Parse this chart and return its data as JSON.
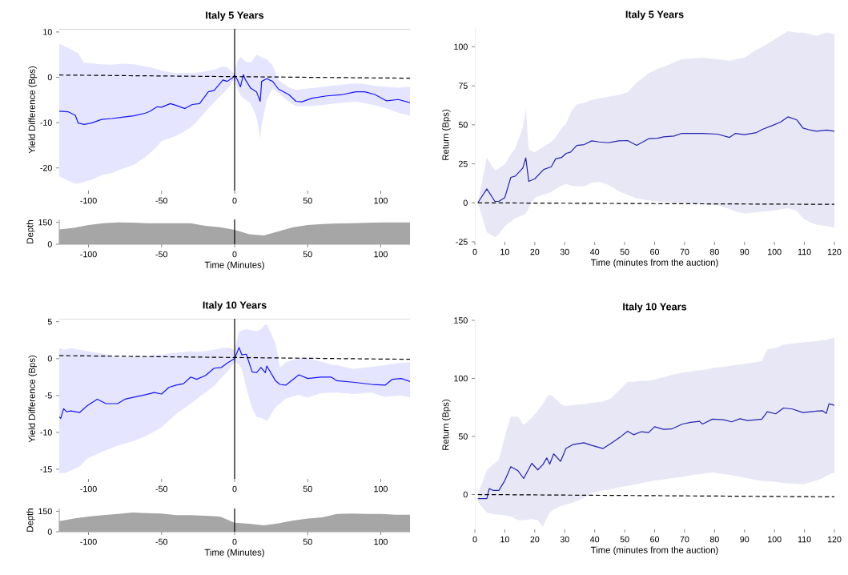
{
  "chart_data": [
    {
      "type": "line",
      "title": "Italy 5 Years",
      "ylabel": "Yield Difference (Bps)",
      "xlim": [
        -120,
        120
      ],
      "ylim": [
        -25,
        10.7
      ],
      "xticks": [
        -100,
        -50,
        0,
        50,
        100
      ],
      "yticks": [
        -20,
        -10,
        0,
        10
      ],
      "ref_lines": [
        {
          "axis": "x",
          "value": 0
        }
      ],
      "series": [
        {
          "color": "#1414ff",
          "x": [
            -120,
            -114,
            -109,
            -107,
            -103,
            -98,
            -91,
            -84,
            -77,
            -69,
            -61,
            -58,
            -53,
            -50,
            -44,
            -40,
            -34,
            -29,
            -24,
            -18,
            -14,
            -8,
            -5,
            -1,
            0,
            2,
            4,
            6,
            7.5,
            11,
            15,
            17.5,
            18.5,
            22,
            26,
            30,
            37,
            42,
            46,
            53,
            63,
            74,
            83,
            89,
            96,
            104,
            112,
            120
          ],
          "values": [
            -7.5,
            -7.6,
            -8.4,
            -10.1,
            -10.4,
            -10.1,
            -9.3,
            -9.1,
            -8.8,
            -8.5,
            -7.9,
            -7.5,
            -6.5,
            -6.6,
            -5.8,
            -6.2,
            -6.9,
            -6.0,
            -5.8,
            -3.2,
            -2.9,
            -0.6,
            -0.9,
            0,
            0.5,
            -0.6,
            -2.1,
            0.6,
            -0.6,
            -2.4,
            -3.2,
            -5.3,
            -0.9,
            -0.3,
            -0.9,
            -2.6,
            -3.8,
            -5.3,
            -5.4,
            -4.6,
            -4.1,
            -3.8,
            -3.2,
            -3.2,
            -3.8,
            -5.2,
            -4.9,
            -5.6
          ],
          "upper": [
            7.4,
            6.5,
            5.6,
            5.3,
            3.2,
            3.1,
            2.9,
            2.8,
            3.0,
            2.9,
            2.4,
            2.2,
            1.8,
            1.5,
            1.1,
            0.9,
            1.0,
            0.9,
            1.1,
            1.4,
            1.7,
            2.4,
            2.2,
            1.0,
            1.2,
            3.5,
            4.5,
            4.0,
            3.5,
            3.2,
            5.0,
            4.6,
            4.4,
            4.0,
            2.6,
            -0.6,
            -2.2,
            -2.8,
            -2.6,
            -2.4,
            -2.0,
            -1.6,
            -1.3,
            -1.5,
            -1.9,
            -2.1,
            -2.3,
            -2.1
          ],
          "lower": [
            -21.8,
            -22.8,
            -23.5,
            -23.4,
            -23.1,
            -22.6,
            -21.6,
            -21.1,
            -20.2,
            -19.3,
            -17.6,
            -16.8,
            -15.2,
            -14.1,
            -13.4,
            -12.9,
            -11.9,
            -10.8,
            -9.1,
            -6.9,
            -5.5,
            -3.5,
            -2.6,
            -0.8,
            -0.6,
            -2.5,
            -4.0,
            -4.6,
            -4.9,
            -5.8,
            -8.8,
            -13.5,
            -10.5,
            -5.0,
            -2.5,
            -3.5,
            -5.4,
            -6.3,
            -6.4,
            -6.3,
            -6.0,
            -5.6,
            -5.4,
            -5.7,
            -6.2,
            -6.9,
            -7.8,
            -8.5
          ]
        },
        {
          "color": "#000000",
          "line_style": "dashed",
          "x": [
            -120,
            120
          ],
          "values": [
            0.5,
            -0.2
          ]
        }
      ]
    },
    {
      "type": "area",
      "xlabel": "Time (Minutes)",
      "ylabel": "Depth",
      "xlim": [
        -120,
        120
      ],
      "ylim": [
        0,
        170
      ],
      "xticks": [
        -100,
        -50,
        0,
        50,
        100
      ],
      "yticks": [
        0,
        150
      ],
      "ref_lines": [
        {
          "axis": "x",
          "value": 0
        }
      ],
      "series": [
        {
          "color": "#a6a6a6",
          "x": [
            -120,
            -110,
            -100,
            -90,
            -80,
            -70,
            -60,
            -50,
            -40,
            -30,
            -20,
            -10,
            0,
            10,
            20,
            30,
            40,
            50,
            60,
            70,
            80,
            90,
            100,
            110,
            120
          ],
          "values": [
            101,
            113,
            131,
            144,
            150,
            148,
            144,
            144,
            144,
            144,
            126,
            116,
            98,
            69,
            60,
            88,
            116,
            131,
            139,
            142,
            144,
            146,
            150,
            150,
            150
          ]
        }
      ]
    },
    {
      "type": "line",
      "title": "Italy 5 Years",
      "xlabel": "Time (minutes from the auction)",
      "ylabel": "Return (Bps)",
      "xlim": [
        0,
        120
      ],
      "ylim": [
        -25,
        112
      ],
      "xticks": [
        0,
        10,
        20,
        30,
        40,
        50,
        60,
        70,
        80,
        90,
        100,
        110,
        120
      ],
      "yticks": [
        -25,
        0,
        25,
        50,
        75,
        100
      ],
      "series": [
        {
          "color": "#2323b0",
          "x": [
            1,
            4,
            6.7,
            8,
            10,
            12,
            13.5,
            16,
            17,
            18,
            20,
            23,
            25.5,
            27,
            29,
            30.5,
            32,
            34,
            36.5,
            39,
            41.5,
            44.5,
            48,
            51,
            54,
            58,
            61,
            63,
            66.5,
            69,
            76,
            81,
            85,
            87,
            90,
            94,
            96,
            99.5,
            102,
            104.5,
            107.5,
            109.5,
            112,
            114,
            117.5,
            120
          ],
          "values": [
            0,
            8.9,
            0.9,
            0.9,
            3.4,
            16.3,
            17.1,
            22.3,
            28.8,
            13.7,
            15.4,
            21.4,
            23.1,
            28.3,
            29.1,
            31.7,
            32.5,
            36.8,
            37.3,
            39.7,
            39.0,
            38.5,
            39.7,
            39.9,
            36.8,
            41.1,
            41.4,
            42.3,
            42.8,
            44.5,
            44.5,
            44.0,
            41.9,
            44.5,
            43.7,
            45.0,
            47.1,
            49.7,
            51.7,
            55.1,
            53.1,
            47.9,
            46.6,
            45.9,
            46.6,
            45.9
          ],
          "upper": [
            0,
            29,
            20.5,
            22,
            24.8,
            31,
            35,
            48,
            60,
            34,
            32.5,
            36,
            39,
            42,
            48,
            51,
            58,
            63,
            64,
            66,
            67,
            68,
            69,
            71,
            77,
            83,
            86,
            87,
            90,
            92,
            93,
            92,
            91,
            92,
            93,
            98,
            100,
            104,
            107,
            110,
            109,
            109,
            108,
            107,
            109,
            108
          ],
          "lower": [
            0,
            -18.8,
            -22,
            -20,
            -15,
            -12,
            -10,
            -8,
            -6.8,
            -3.4,
            3.4,
            5.4,
            6.8,
            8.9,
            11,
            12,
            11,
            10.6,
            10.5,
            12.8,
            13.5,
            11.5,
            7.5,
            5,
            3,
            1.6,
            0.9,
            0.6,
            0.2,
            0,
            -1,
            -1.7,
            -4,
            -5.5,
            -6.8,
            -6,
            -5.6,
            -5,
            -4.2,
            -3.4,
            -5,
            -10,
            -12.5,
            -14,
            -15,
            -16
          ]
        },
        {
          "color": "#000000",
          "line_style": "dashed",
          "x": [
            1,
            120
          ],
          "values": [
            0,
            -1
          ]
        }
      ]
    },
    {
      "type": "line",
      "title": "Italy 10 Years",
      "ylabel": "Yield Difference (Bps)",
      "xlim": [
        -120,
        120
      ],
      "ylim": [
        -16.3,
        5.4
      ],
      "xticks": [
        -100,
        -50,
        0,
        50,
        100
      ],
      "yticks": [
        -15,
        -10,
        -5,
        0,
        5
      ],
      "ref_lines": [
        {
          "axis": "x",
          "value": 0
        }
      ],
      "series": [
        {
          "color": "#1414ff",
          "x": [
            -120,
            -119,
            -117,
            -115,
            -112,
            -106,
            -101,
            -94,
            -88,
            -80,
            -75,
            -68,
            -61,
            -55,
            -50,
            -45,
            -40,
            -35,
            -30,
            -26,
            -20,
            -14,
            -9,
            -5,
            0,
            3,
            5,
            8,
            12,
            15,
            18,
            21,
            22,
            28,
            31,
            35,
            44,
            50,
            59,
            66,
            70,
            81,
            94,
            103,
            108,
            114,
            120
          ],
          "values": [
            -7.9,
            -8.1,
            -6.8,
            -7.2,
            -7.1,
            -7.3,
            -6.4,
            -5.5,
            -6.1,
            -6.1,
            -5.5,
            -5.2,
            -4.9,
            -4.6,
            -4.8,
            -3.9,
            -3.6,
            -3.4,
            -2.5,
            -2.8,
            -2.3,
            -1.3,
            -1.2,
            -0.6,
            0,
            1.5,
            0.5,
            0.6,
            -1.8,
            -1.9,
            -1.2,
            -1.9,
            -1.0,
            -3.0,
            -3.5,
            -3.6,
            -2.2,
            -2.7,
            -2.5,
            -2.5,
            -3.0,
            -3.2,
            -3.5,
            -3.6,
            -2.8,
            -2.7,
            -3.1
          ],
          "upper": [
            1.3,
            1.4,
            1.2,
            1.3,
            1.4,
            1.2,
            1.0,
            0.8,
            0.6,
            0.1,
            0.2,
            0.3,
            0.3,
            0.5,
            0.5,
            0.7,
            0.8,
            0.9,
            1.0,
            0.9,
            1.0,
            1.2,
            1.4,
            1.5,
            1.2,
            3.6,
            3.8,
            4.0,
            3.8,
            3.7,
            4.0,
            4.6,
            4.7,
            2.0,
            -1.2,
            -0.5,
            0.1,
            0.1,
            -0.4,
            -0.8,
            -0.9,
            -1.4,
            -1.1,
            -0.9,
            -0.7,
            -0.6,
            -0.5
          ],
          "lower": [
            -15.6,
            -15.5,
            -15.5,
            -15.4,
            -15.2,
            -14.6,
            -13.6,
            -12.9,
            -12.4,
            -11.8,
            -11.5,
            -11.1,
            -10.5,
            -9.9,
            -9.3,
            -8.4,
            -7.5,
            -6.8,
            -6.1,
            -5.5,
            -4.6,
            -3.7,
            -2.6,
            -1.8,
            -0.5,
            -0.8,
            -1.4,
            -4.0,
            -6.8,
            -7.9,
            -8.0,
            -8.3,
            -8.5,
            -6.6,
            -6.1,
            -5.4,
            -4.9,
            -5.3,
            -4.7,
            -4.6,
            -4.6,
            -4.8,
            -4.6,
            -5.2,
            -5.1,
            -5.0,
            -5.3
          ]
        },
        {
          "color": "#000000",
          "line_style": "dashed",
          "x": [
            -120,
            120
          ],
          "values": [
            0.4,
            -0.1
          ]
        }
      ]
    },
    {
      "type": "area",
      "xlabel": "Time (Minutes)",
      "ylabel": "Depth",
      "xlim": [
        -120,
        120
      ],
      "ylim": [
        0,
        170
      ],
      "xticks": [
        -100,
        -50,
        0,
        50,
        100
      ],
      "yticks": [
        0,
        150
      ],
      "ref_lines": [
        {
          "axis": "x",
          "value": 0
        }
      ],
      "series": [
        {
          "color": "#a6a6a6",
          "x": [
            -120,
            -110,
            -100,
            -90,
            -80,
            -70,
            -60,
            -50,
            -40,
            -30,
            -20,
            -10,
            0,
            10,
            20,
            30,
            40,
            50,
            60,
            70,
            80,
            90,
            100,
            110,
            120
          ],
          "values": [
            78,
            97,
            111,
            121,
            131,
            140,
            136,
            134,
            121,
            121,
            117,
            111,
            66,
            58,
            47,
            62,
            82,
            97,
            105,
            131,
            134,
            131,
            131,
            125,
            125
          ]
        }
      ]
    },
    {
      "type": "line",
      "title": "Italy 10 Years",
      "xlabel": "Time (minutes from the auction)",
      "ylabel": "Return (Bps)",
      "xlim": [
        0,
        120
      ],
      "ylim": [
        -30,
        150
      ],
      "xticks": [
        0,
        10,
        20,
        30,
        40,
        50,
        60,
        70,
        80,
        90,
        100,
        110,
        120
      ],
      "yticks": [
        0,
        50,
        100,
        150
      ],
      "series": [
        {
          "color": "#2323b0",
          "x": [
            1,
            4,
            4.8,
            6.2,
            8,
            10,
            12,
            14.4,
            16.3,
            19,
            21,
            22.7,
            24,
            25,
            26.3,
            28.6,
            30.4,
            32.7,
            36.4,
            39,
            42.8,
            45.5,
            48.7,
            51,
            53,
            55.6,
            58,
            60,
            63,
            65.6,
            69.3,
            72,
            75,
            76,
            79.3,
            83,
            85.7,
            88.5,
            91,
            94,
            95.8,
            97.6,
            100.4,
            103,
            106,
            109.5,
            114,
            116,
            117.3,
            118.2,
            120
          ],
          "values": [
            -3.5,
            -3.5,
            5.1,
            3.5,
            3.5,
            12,
            23.9,
            20.5,
            13.8,
            26.9,
            21.2,
            25.8,
            31.5,
            26.2,
            35,
            28.5,
            39.6,
            43,
            44.6,
            42.3,
            39.6,
            44.2,
            49.9,
            54.5,
            51.5,
            54.1,
            53.4,
            58.4,
            56.1,
            56.4,
            60.7,
            62.1,
            63,
            60.7,
            64.9,
            64.4,
            62.6,
            65.3,
            63.7,
            64.4,
            64.9,
            71.3,
            69.5,
            74.5,
            73.6,
            70.6,
            71.8,
            72.2,
            69.9,
            78.2,
            76.8
          ],
          "upper": [
            0,
            21,
            23,
            26,
            30,
            50,
            67,
            67,
            60,
            66,
            72,
            78,
            84,
            86,
            84,
            78,
            76,
            77,
            78,
            79,
            80,
            83,
            91,
            97,
            97,
            98,
            98,
            99,
            101,
            103,
            105,
            106,
            107,
            107,
            109,
            110,
            111,
            112,
            113,
            114,
            115,
            125,
            126,
            129,
            130,
            131,
            132,
            133,
            133,
            134,
            135
          ],
          "lower": [
            -6.4,
            -15.6,
            -16,
            -17,
            -17.5,
            -18,
            -19,
            -22,
            -22,
            -21,
            -22,
            -28,
            -20,
            -15.6,
            -13,
            -10,
            -8.7,
            -7,
            -3,
            1.5,
            3.5,
            4.7,
            6.5,
            7.4,
            8.5,
            9.8,
            11,
            12,
            13,
            14.2,
            15.2,
            16.5,
            17.6,
            18,
            18.9,
            17.7,
            16.5,
            15.2,
            14,
            12.5,
            11.7,
            11.5,
            10.8,
            10,
            9.5,
            8.8,
            12,
            14,
            16,
            17,
            18.9
          ]
        },
        {
          "color": "#000000",
          "line_style": "dashed",
          "x": [
            1,
            120
          ],
          "values": [
            0,
            -2
          ]
        }
      ]
    }
  ]
}
